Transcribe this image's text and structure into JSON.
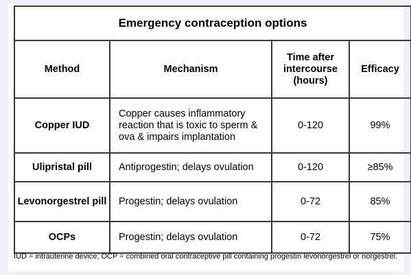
{
  "table": {
    "title": "Emergency contraception options",
    "headers": {
      "method": "Method",
      "mechanism": "Mechanism",
      "time": "Time after intercourse (hours)",
      "efficacy": "Efficacy"
    },
    "rows": [
      {
        "method": "Copper IUD",
        "mechanism": "Copper causes inflammatory reaction that is toxic to sperm & ova & impairs implantation",
        "time": "0-120",
        "efficacy": "99%"
      },
      {
        "method": "Ulipristal pill",
        "mechanism": "Antiprogestin; delays ovulation",
        "time": "0-120",
        "efficacy": "≥85%"
      },
      {
        "method": "Levonorgestrel pill",
        "mechanism": "Progestin; delays ovulation",
        "time": "0-72",
        "efficacy": "85%"
      },
      {
        "method": "OCPs",
        "mechanism": "Progestin; delays ovulation",
        "time": "0-72",
        "efficacy": "75%"
      }
    ]
  },
  "footnote": "IUD = intrauterine device; OCP = combined oral contraceptive pill containing progestin levonorgestrel or norgestrel."
}
